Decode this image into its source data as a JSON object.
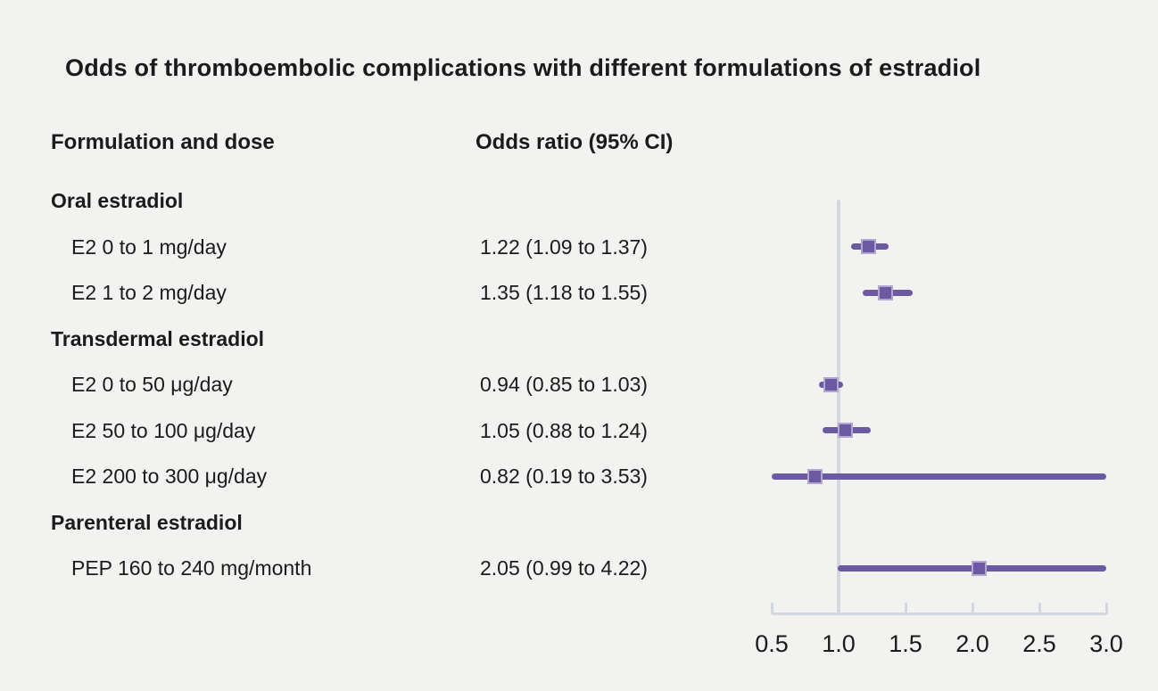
{
  "title": "Odds of thromboembolic complications with different formulations of estradiol",
  "columns": {
    "left": "Formulation and dose",
    "right": "Odds ratio (95% CI)"
  },
  "chart_data": {
    "type": "scatter",
    "subtype": "forest-plot",
    "title": "Odds of thromboembolic complications with different formulations of estradiol",
    "xlabel": "Odds ratio",
    "x_range": [
      0.5,
      3.0
    ],
    "x_ticks": [
      0.5,
      1.0,
      1.5,
      2.0,
      2.5,
      3.0
    ],
    "x_tick_labels": [
      "0.5",
      "1.0",
      "1.5",
      "2.0",
      "2.5",
      "3.0"
    ],
    "reference_line_x": 1.0,
    "ci_clipped_to_range": true,
    "grid": false,
    "legend": "none",
    "rows": [
      {
        "type": "group",
        "label": "Oral estradiol"
      },
      {
        "type": "item",
        "label": "E2 0 to 1 mg/day",
        "or_text": "1.22 (1.09 to 1.37)",
        "estimate": 1.22,
        "ci_low": 1.09,
        "ci_high": 1.37
      },
      {
        "type": "item",
        "label": "E2 1 to 2 mg/day",
        "or_text": "1.35 (1.18 to 1.55)",
        "estimate": 1.35,
        "ci_low": 1.18,
        "ci_high": 1.55
      },
      {
        "type": "group",
        "label": "Transdermal estradiol"
      },
      {
        "type": "item",
        "label": "E2 0 to 50 μg/day",
        "or_text": "0.94 (0.85 to 1.03)",
        "estimate": 0.94,
        "ci_low": 0.85,
        "ci_high": 1.03
      },
      {
        "type": "item",
        "label": "E2 50 to 100 μg/day",
        "or_text": "1.05 (0.88 to 1.24)",
        "estimate": 1.05,
        "ci_low": 0.88,
        "ci_high": 1.24
      },
      {
        "type": "item",
        "label": "E2 200 to 300 μg/day",
        "or_text": "0.82 (0.19 to 3.53)",
        "estimate": 0.82,
        "ci_low": 0.19,
        "ci_high": 3.53
      },
      {
        "type": "group",
        "label": "Parenteral estradiol"
      },
      {
        "type": "item",
        "label": "PEP 160 to 240 mg/month",
        "or_text": "2.05 (0.99 to 4.22)",
        "estimate": 2.05,
        "ci_low": 0.99,
        "ci_high": 4.22
      }
    ]
  },
  "colors": {
    "background": "#f2f2f1",
    "text": "#1b1b1b",
    "marker": "#6c59a4",
    "marker_border": "#b3a6d0",
    "axis": "#d3d7e0"
  }
}
